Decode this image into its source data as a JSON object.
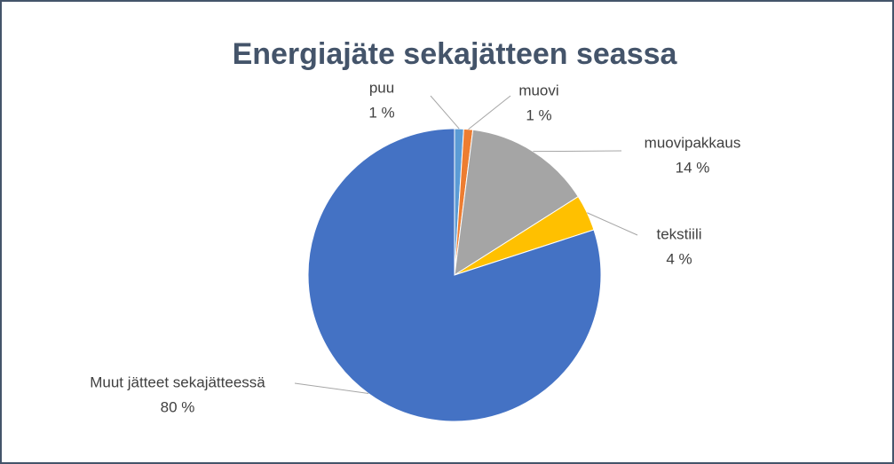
{
  "chart_data": {
    "type": "pie",
    "title": "Energiajäte sekajätteen seassa",
    "categories": [
      "puu",
      "muovi",
      "muovipakkaus",
      "tekstiili",
      "Muut jätteet sekajätteessä"
    ],
    "values": [
      1,
      1,
      14,
      4,
      80
    ],
    "value_labels": [
      "1 %",
      "1 %",
      "14 %",
      "4 %",
      "80 %"
    ],
    "colors": [
      "#5b9bd5",
      "#ed7d31",
      "#a5a5a5",
      "#ffc000",
      "#4472c4"
    ]
  }
}
